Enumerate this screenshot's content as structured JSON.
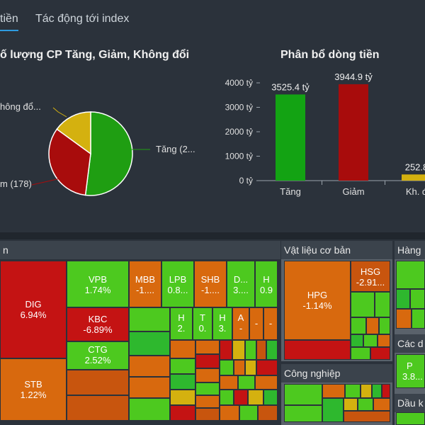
{
  "tabs": [
    {
      "label": "tiền"
    },
    {
      "label": "Tác động tới index"
    }
  ],
  "pie_panel": {
    "title": "ố lượng CP Tăng, Giảm, Không đổi",
    "label_unchanged": "hông đổ...",
    "label_up": "Tăng (2...",
    "label_down": "m (178)"
  },
  "bar_panel": {
    "title": "Phân bổ dòng tiền"
  },
  "chart_data": [
    {
      "type": "pie",
      "title": "ố lượng CP Tăng, Giảm, Không đổi",
      "slices": [
        {
          "label": "Tăng (2...",
          "share": 0.52,
          "color": "#1f9e12"
        },
        {
          "label": "m (178)",
          "share": 0.33,
          "color": "#a80c0c"
        },
        {
          "label": "hông đổ...",
          "share": 0.15,
          "color": "#d4b10f"
        }
      ]
    },
    {
      "type": "bar",
      "title": "Phân bổ dòng tiền",
      "categories": [
        "Tăng",
        "Giảm",
        "Kh. đ"
      ],
      "values": [
        3525.4,
        3944.9,
        252.8
      ],
      "value_labels": [
        "3525.4 tỷ",
        "3944.9 tỷ",
        "252.8"
      ],
      "colors": [
        "#13a313",
        "#a80c0c",
        "#d4b10f"
      ],
      "yticks": [
        "0 tỷ",
        "1000 tỷ",
        "2000 tỷ",
        "3000 tỷ",
        "4000 tỷ"
      ],
      "ylim": [
        0,
        4000
      ]
    }
  ],
  "heatmap": {
    "sector_left": "n",
    "sector_material": "Vật liệu cơ bản",
    "sector_industry": "Công nghiệp",
    "sector_goods": "Hàng",
    "sector_other": "Các d",
    "sector_oil": "Dầu k",
    "tiles": [
      {
        "code": "DIG",
        "change": "6.94%"
      },
      {
        "code": "STB",
        "change": "1.22%"
      },
      {
        "code": "VPB",
        "change": "1.74%"
      },
      {
        "code": "KBC",
        "change": "-6.89%"
      },
      {
        "code": "CTG",
        "change": "2.52%"
      },
      {
        "code": "MBB",
        "change": "-1...."
      },
      {
        "code": "LPB",
        "change": "0.8..."
      },
      {
        "code": "SHB",
        "change": "-1...."
      },
      {
        "code": "D...",
        "change": "3...."
      },
      {
        "code": "H",
        "change": "0.9"
      },
      {
        "code": "H",
        "change": "2."
      },
      {
        "code": "T",
        "change": "0."
      },
      {
        "code": "H",
        "change": "3."
      },
      {
        "code": "A",
        "change": "-"
      },
      {
        "code": "",
        "change": "-"
      },
      {
        "code": "",
        "change": "-"
      },
      {
        "code": "HPG",
        "change": "-1.14%"
      },
      {
        "code": "HSG",
        "change": "-2.91..."
      },
      {
        "code": "P",
        "change": "3.8..."
      }
    ]
  }
}
